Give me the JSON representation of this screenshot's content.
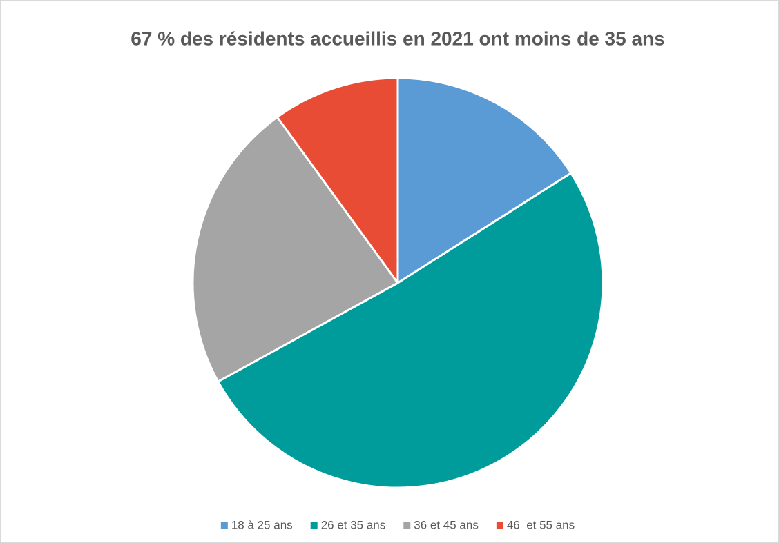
{
  "chart_data": {
    "type": "pie",
    "title": "67 % des résidents accueillis en 2021 ont moins de 35 ans",
    "categories": [
      "18 à 25 ans",
      "26 et 35 ans",
      "36 et 45 ans",
      "46  et 55 ans"
    ],
    "values": [
      16,
      51,
      23,
      10
    ],
    "colors": [
      "#5b9bd5",
      "#009c9c",
      "#a5a5a5",
      "#e84c34"
    ],
    "legend": "bottom"
  }
}
